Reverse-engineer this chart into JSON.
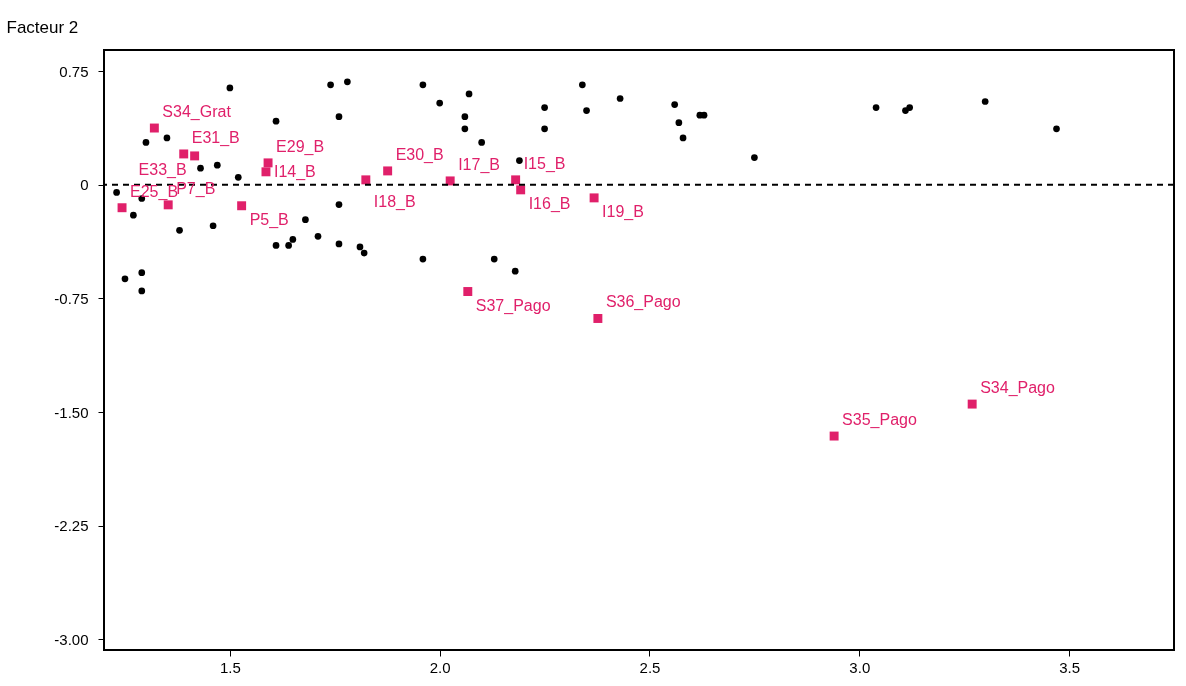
{
  "chart_data": {
    "type": "scatter",
    "ylabel": "Facteur 2",
    "xlim": [
      1.2,
      3.75
    ],
    "ylim": [
      -3.07,
      0.89
    ],
    "xticks": [
      1.5,
      {
        "value": 2,
        "label": "2.0"
      },
      2.5,
      {
        "value": 3,
        "label": "3.0"
      },
      3.5
    ],
    "yticks": [
      {
        "value": -3,
        "label": "-3.00"
      },
      -2.25,
      {
        "value": -1.5,
        "label": "-1.50"
      },
      -0.75,
      0,
      0.75
    ],
    "grid": false,
    "ref_lines": [
      {
        "axis": "y",
        "value": 0,
        "line_style": "dashed",
        "color": "#000000"
      }
    ],
    "series": [
      {
        "color": "#000000",
        "marker": "circle",
        "x": [
          1.5,
          1.74,
          1.78,
          1.96,
          2.0,
          1.61,
          1.76,
          1.3,
          1.35,
          1.43,
          1.47,
          1.52,
          1.23,
          1.29,
          1.27,
          1.38,
          1.46,
          1.61,
          1.64,
          1.65,
          1.68,
          1.71,
          1.76,
          1.81,
          1.82,
          1.76,
          1.96,
          1.25,
          1.29,
          1.29,
          2.07,
          2.06,
          2.06,
          2.1,
          2.25,
          2.25,
          2.34,
          2.35,
          2.43,
          2.56,
          2.57,
          2.58,
          2.62,
          2.63,
          2.75,
          2.19,
          2.13,
          2.18,
          3.04,
          3.11,
          3.12,
          3.3,
          3.47
        ],
        "values": [
          0.64,
          0.66,
          0.68,
          0.66,
          0.54,
          0.42,
          0.45,
          0.28,
          0.31,
          0.11,
          0.13,
          0.05,
          -0.05,
          -0.09,
          -0.2,
          -0.3,
          -0.27,
          -0.4,
          -0.4,
          -0.36,
          -0.23,
          -0.34,
          -0.39,
          -0.41,
          -0.45,
          -0.13,
          -0.49,
          -0.62,
          -0.58,
          -0.7,
          0.6,
          0.45,
          0.37,
          0.28,
          0.51,
          0.37,
          0.66,
          0.49,
          0.57,
          0.53,
          0.41,
          0.31,
          0.46,
          0.46,
          0.18,
          0.16,
          -0.49,
          -0.57,
          0.51,
          0.49,
          0.51,
          0.55,
          0.37
        ]
      },
      {
        "color": "#e0206a",
        "marker": "square",
        "x": [
          1.32,
          1.39,
          1.416,
          1.591,
          1.586,
          1.876,
          1.824,
          2.025,
          2.181,
          2.193,
          2.368,
          1.243,
          1.353,
          1.528,
          2.067,
          2.377,
          2.94,
          3.269
        ],
        "values": [
          0.375,
          0.204,
          0.191,
          0.145,
          0.086,
          0.092,
          0.033,
          0.026,
          0.033,
          -0.033,
          -0.086,
          -0.151,
          -0.132,
          -0.138,
          -0.704,
          -0.882,
          -1.658,
          -1.447
        ]
      }
    ],
    "annotations": [
      {
        "text": "S34_Grat",
        "x": 1.32,
        "y": 0.375
      },
      {
        "text": "E31_B",
        "x": 1.39,
        "y": 0.204
      },
      {
        "text": "E33_B",
        "x": 1.416,
        "y": 0.191
      },
      {
        "text": "E29_B",
        "x": 1.591,
        "y": 0.145
      },
      {
        "text": "I14_B",
        "x": 1.586,
        "y": 0.086
      },
      {
        "text": "E30_B",
        "x": 1.876,
        "y": 0.092
      },
      {
        "text": "I18_B",
        "x": 1.824,
        "y": 0.033
      },
      {
        "text": "I17_B",
        "x": 2.025,
        "y": 0.026
      },
      {
        "text": "I15_B",
        "x": 2.181,
        "y": 0.033
      },
      {
        "text": "I16_B",
        "x": 2.193,
        "y": -0.033
      },
      {
        "text": "I19_B",
        "x": 2.368,
        "y": -0.086
      },
      {
        "text": "E25_B",
        "x": 1.243,
        "y": -0.151
      },
      {
        "text": "P7_B",
        "x": 1.353,
        "y": -0.132
      },
      {
        "text": "P5_B",
        "x": 1.528,
        "y": -0.138
      },
      {
        "text": "S37_Pago",
        "x": 2.067,
        "y": -0.704
      },
      {
        "text": "S36_Pago",
        "x": 2.377,
        "y": -0.882
      },
      {
        "text": "S35_Pago",
        "x": 2.94,
        "y": -1.658
      },
      {
        "text": "S34_Pago",
        "x": 3.269,
        "y": -1.447
      }
    ]
  }
}
